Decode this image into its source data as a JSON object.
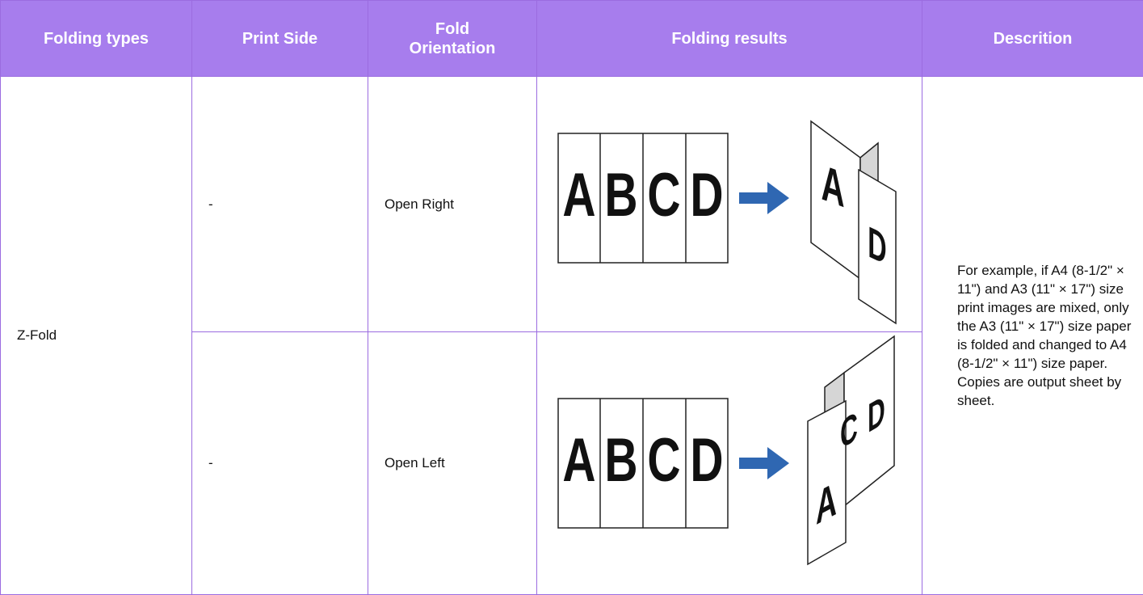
{
  "table": {
    "header": [
      "Folding types",
      "Print Side",
      "Fold Orientation",
      "Folding results",
      "Descrition"
    ],
    "folding_type": "Z-Fold",
    "rows": [
      {
        "print_side": "-",
        "fold_orientation": "Open Right",
        "result_flat": [
          "A",
          "B",
          "C",
          "D"
        ],
        "result_folded": [
          "A",
          "D"
        ]
      },
      {
        "print_side": "-",
        "fold_orientation": "Open Left",
        "result_flat": [
          "A",
          "B",
          "C",
          "D"
        ],
        "result_folded": [
          "C",
          "D",
          "A"
        ]
      }
    ],
    "description": "For example, if A4 (8-1/2\" × 11\") and A3 (11\" × 17\") size print images are mixed, only the A3 (11\" × 17\") size paper is folded and changed to A4 (8-1/2\" × 11\") size paper. Copies are output sheet by sheet."
  }
}
